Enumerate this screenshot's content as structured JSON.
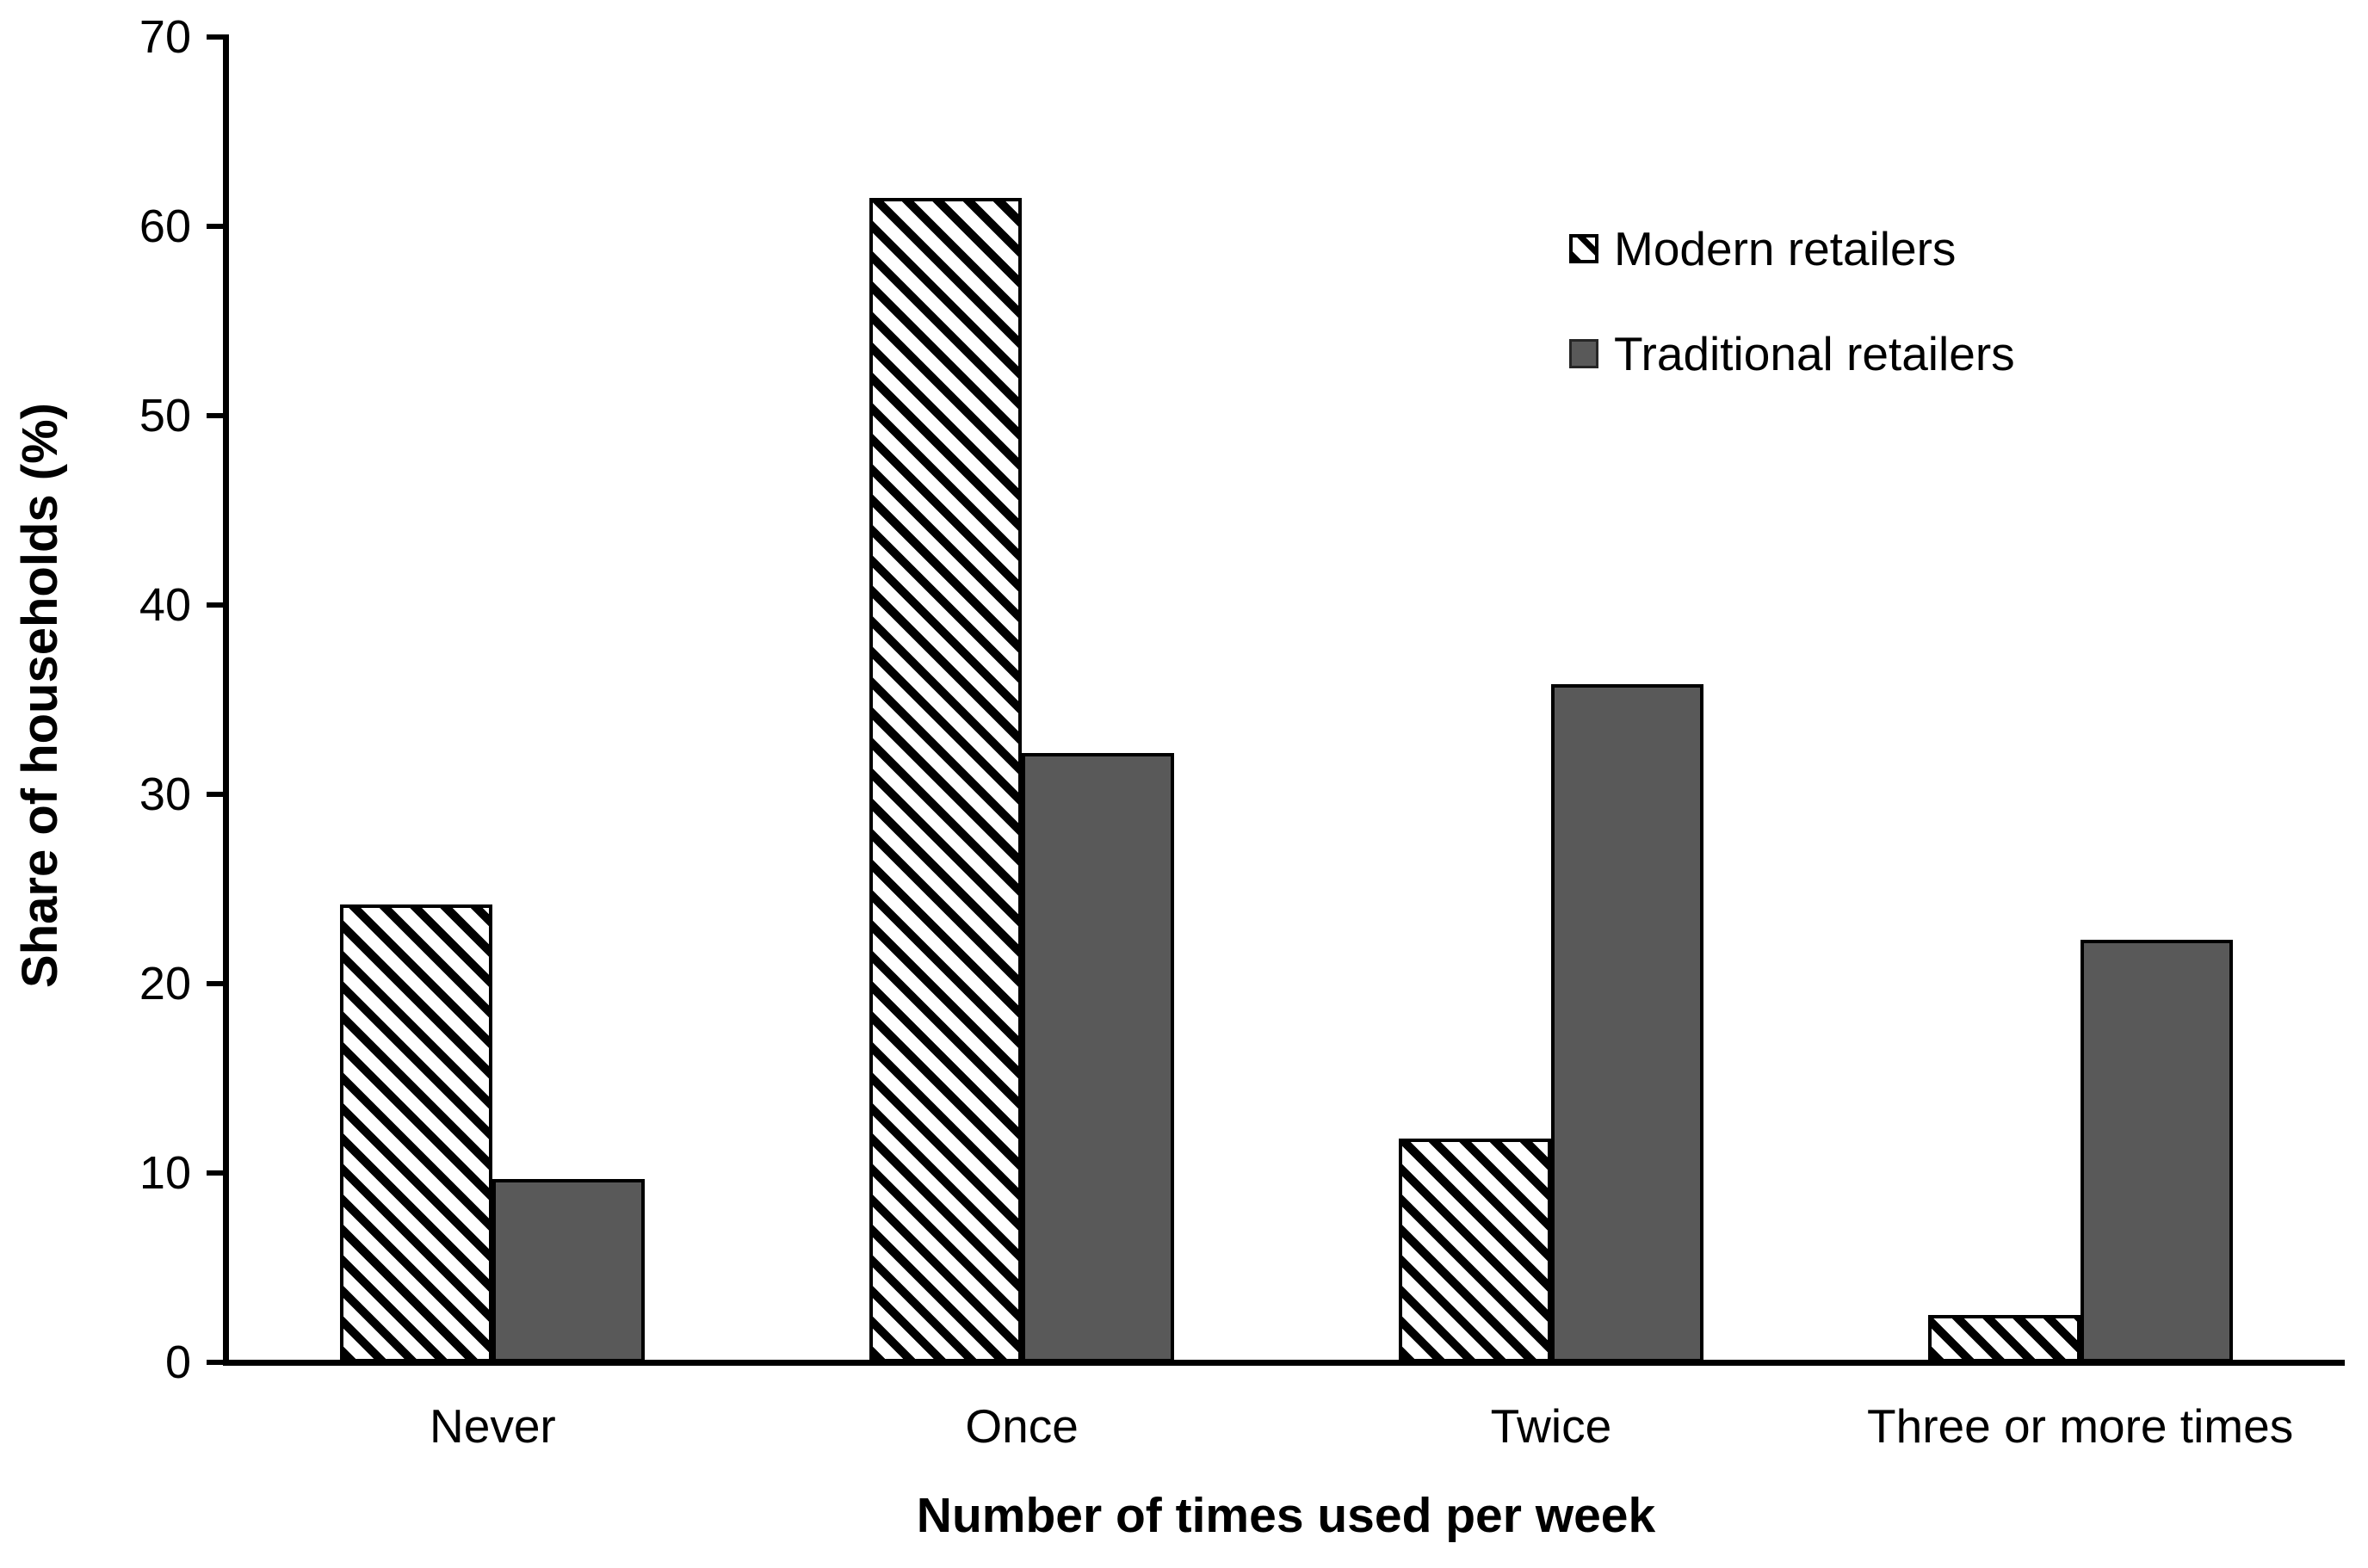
{
  "chart_data": {
    "type": "bar",
    "title": "",
    "categories": [
      "Never",
      "Once",
      "Twice",
      "Three or more times"
    ],
    "series": [
      {
        "name": "Modern retailers",
        "style": "diagonal-hatch",
        "values": [
          24.2,
          61.5,
          11.8,
          2.5
        ]
      },
      {
        "name": "Traditional retailers",
        "style": "solid",
        "color": "#595959",
        "values": [
          9.7,
          32.2,
          35.8,
          22.3
        ]
      }
    ],
    "xlabel": "Number of times used per week",
    "ylabel": "Share of households (%)",
    "ylim": [
      0,
      70
    ],
    "yticks": [
      "0",
      "10",
      "20",
      "30",
      "40",
      "50",
      "60",
      "70"
    ],
    "grid": false,
    "legend_position": "upper-right",
    "colors": {
      "hatch_foreground": "#000000",
      "hatch_background": "#ffffff",
      "traditional_fill": "#595959",
      "axis": "#000000",
      "background": "#ffffff"
    }
  }
}
